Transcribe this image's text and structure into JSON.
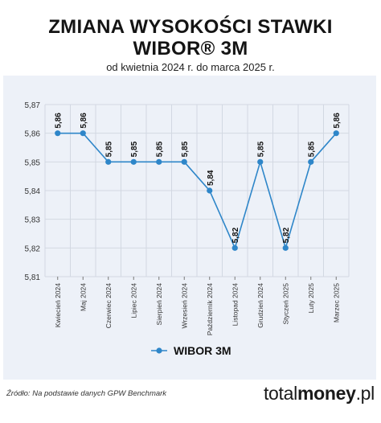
{
  "header": {
    "title_line1": "ZMIANA WYSOKOŚCI STAWKI",
    "title_line2": "WIBOR® 3M",
    "subtitle": "od kwietnia 2024 r. do marca 2025 r."
  },
  "chart_data": {
    "type": "line",
    "title": "ZMIANA WYSOKOŚCI STAWKI WIBOR® 3M",
    "subtitle": "od kwietnia 2024 r. do marca 2025 r.",
    "categories": [
      "Kwiecień 2024",
      "Maj 2024",
      "Czerwiec 2024",
      "Lipiec 2024",
      "Sierpień 2024",
      "Wrzesień 2024",
      "Październik 2024",
      "Listopad 2024",
      "Grudzień 2024",
      "Styczeń 2025",
      "Luty 2025",
      "Marzec 2025"
    ],
    "series": [
      {
        "name": "WIBOR 3M",
        "values": [
          5.86,
          5.86,
          5.85,
          5.85,
          5.85,
          5.85,
          5.84,
          5.82,
          5.85,
          5.82,
          5.85,
          5.86
        ],
        "value_labels": [
          "5,86",
          "5,86",
          "5,85",
          "5,85",
          "5,85",
          "5,85",
          "5,84",
          "5,82",
          "5,85",
          "5,82",
          "5,85",
          "5,86"
        ],
        "color": "#2e86c9"
      }
    ],
    "ylim": [
      5.81,
      5.87
    ],
    "y_ticks": [
      5.81,
      5.82,
      5.83,
      5.84,
      5.85,
      5.86,
      5.87
    ],
    "y_tick_labels": [
      "5,81",
      "5,82",
      "5,83",
      "5,84",
      "5,85",
      "5,86",
      "5,87"
    ],
    "xlabel": "",
    "ylabel": "",
    "grid": true,
    "legend_position": "bottom",
    "colors": {
      "line": "#2e86c9",
      "grid": "#d2d8e2",
      "background": "#edf1f8"
    }
  },
  "footer": {
    "source": "Źródło: Na podstawie danych GPW Benchmark",
    "brand_light": "total",
    "brand_bold": "money",
    "brand_suffix": ".pl"
  }
}
